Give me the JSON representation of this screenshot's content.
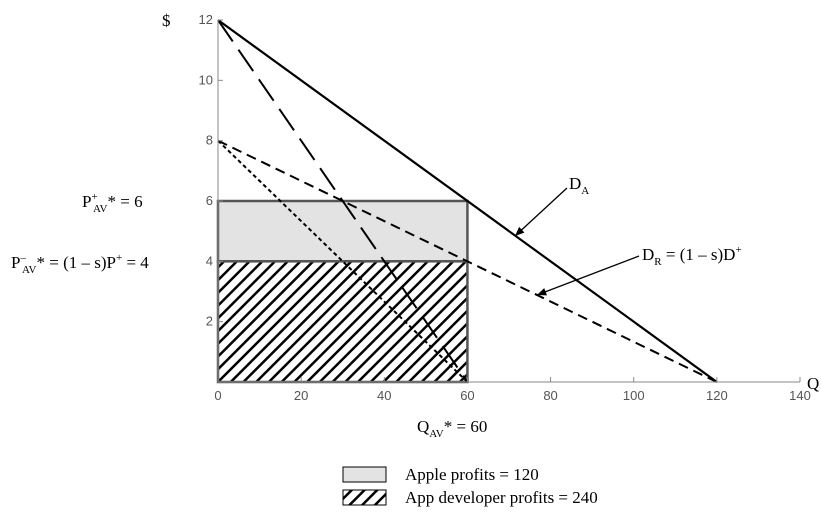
{
  "chart_data": {
    "type": "line",
    "ylabel": "$",
    "xlabel": "Q",
    "xlim": [
      0,
      140
    ],
    "ylim": [
      0,
      12
    ],
    "x_ticks": [
      0,
      20,
      40,
      60,
      80,
      100,
      120,
      140
    ],
    "y_ticks": [
      2,
      4,
      6,
      8,
      10,
      12
    ],
    "grid": false,
    "series": [
      {
        "name": "D_A",
        "style": "solid",
        "points": [
          [
            0,
            12
          ],
          [
            120,
            0
          ]
        ]
      },
      {
        "name": "D_R = (1 – s)D⁺",
        "style": "dashed",
        "points": [
          [
            0,
            8
          ],
          [
            120,
            0
          ]
        ]
      },
      {
        "style": "long-dashed",
        "points": [
          [
            0,
            12
          ],
          [
            60,
            0
          ]
        ]
      },
      {
        "style": "dotted",
        "points": [
          [
            0,
            8
          ],
          [
            60,
            0
          ]
        ]
      }
    ],
    "regions": [
      {
        "name": "Apple profits = 120",
        "fill": "light-gray",
        "x": [
          0,
          60
        ],
        "y": [
          4,
          6
        ]
      },
      {
        "name": "App developer profits = 240",
        "fill": "hatched",
        "x": [
          0,
          60
        ],
        "y": [
          0,
          4
        ]
      }
    ],
    "annotations": {
      "da": {
        "base": "D",
        "sub": "A"
      },
      "dr": {
        "base": "D",
        "sub": "R",
        "tail": " = (1 – s)D",
        "sup": "+"
      },
      "p_plus": {
        "base": "P",
        "sup": "+",
        "sub": "AV",
        "tail": "* = 6"
      },
      "p_minus": {
        "base": "P",
        "sup": "–",
        "sub": "AV",
        "tail": "* = (1 – s)P",
        "sup2": "+",
        "tail2": " = 4"
      },
      "q": {
        "base": "Q",
        "sub": "AV",
        "tail": "* = 60"
      }
    },
    "legend": {
      "placement": "bottom-center",
      "entries": [
        "Apple profits = 120",
        "App developer profits = 240"
      ]
    },
    "colors": {
      "axis": "#888888",
      "line": "#000000",
      "gray_fill": "#e3e3e3",
      "tick_text": "#555555"
    }
  }
}
